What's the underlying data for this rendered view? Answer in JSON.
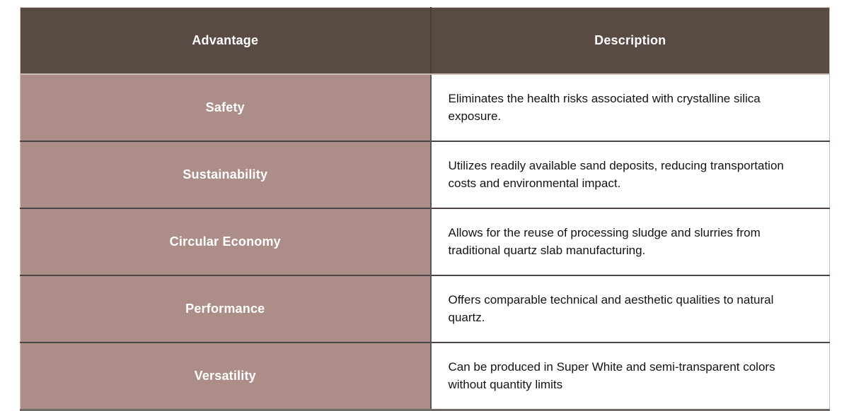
{
  "table": {
    "columns": [
      {
        "label": "Advantage"
      },
      {
        "label": "Description"
      }
    ],
    "rows": [
      {
        "advantage": "Safety",
        "description": "Eliminates the health risks associated with crystalline silica exposure."
      },
      {
        "advantage": "Sustainability",
        "description": "Utilizes readily available sand deposits, reducing transportation costs and environmental impact."
      },
      {
        "advantage": "Circular Economy",
        "description": "Allows for the reuse of processing sludge and slurries from traditional quartz slab manufacturing."
      },
      {
        "advantage": "Performance",
        "description": "Offers comparable technical and aesthetic qualities to natural quartz."
      },
      {
        "advantage": "Versatility",
        "description": "Can be produced in Super White and semi-transparent colors without quantity limits"
      }
    ],
    "colors": {
      "header_bg": "#594a44",
      "header_text": "#ffffff",
      "advantage_bg": "#ad8d87",
      "advantage_text": "#ffffff",
      "description_bg": "#ffffff",
      "description_text": "#141414",
      "row_divider": "#4c4346",
      "bottom_border": "#6f6a68"
    }
  }
}
